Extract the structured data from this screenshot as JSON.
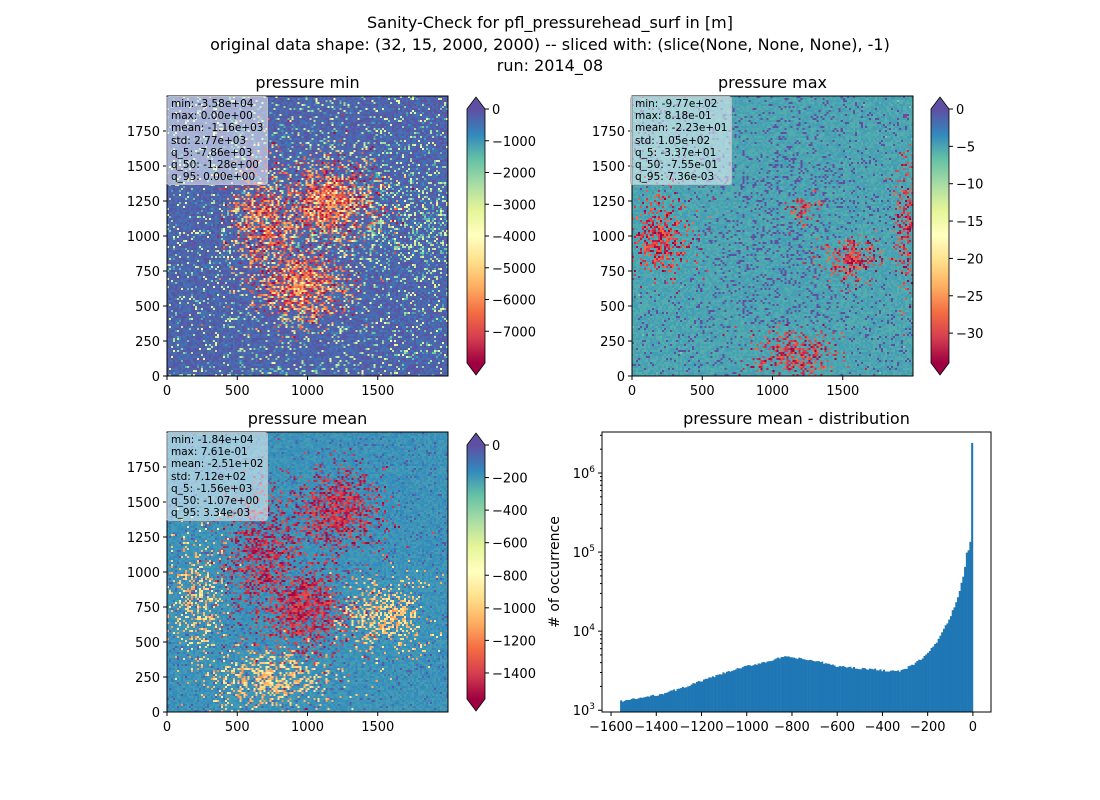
{
  "title_lines": [
    "Sanity-Check for pfl_pressurehead_surf in [m]",
    "original data shape: (32, 15, 2000, 2000) -- sliced with: (slice(None, None, None), -1)",
    "run: 2014_08"
  ],
  "chart_data": [
    {
      "type": "heatmap",
      "title": "pressure min",
      "xlabel": "",
      "ylabel": "",
      "xlim": [
        0,
        2000
      ],
      "ylim": [
        0,
        2000
      ],
      "xticks": [
        0,
        500,
        1000,
        1500
      ],
      "yticks": [
        0,
        250,
        500,
        750,
        1000,
        1250,
        1500,
        1750
      ],
      "colormap": "Spectral",
      "colorbar": {
        "vmin": -8000,
        "vmax": 0,
        "ticks": [
          0,
          -1000,
          -2000,
          -3000,
          -4000,
          -5000,
          -6000,
          -7000
        ],
        "extend": "both"
      },
      "stats": [
        "min: -3.58e+04",
        "max: 0.00e+00",
        "mean: -1.16e+03",
        "std: 2.77e+03",
        "q_5: -7.86e+03",
        "q_50: -1.28e+00",
        "q_95: 0.00e+00"
      ]
    },
    {
      "type": "heatmap",
      "title": "pressure max",
      "xlabel": "",
      "ylabel": "",
      "xlim": [
        0,
        2000
      ],
      "ylim": [
        0,
        2000
      ],
      "xticks": [
        0,
        500,
        1000,
        1500
      ],
      "yticks": [
        0,
        250,
        500,
        750,
        1000,
        1250,
        1500,
        1750
      ],
      "colormap": "Spectral",
      "colorbar": {
        "vmin": -34,
        "vmax": 0,
        "ticks": [
          0,
          -5,
          -10,
          -15,
          -20,
          -25,
          -30
        ],
        "extend": "both"
      },
      "stats": [
        "min: -9.77e+02",
        "max: 8.18e-01",
        "mean: -2.23e+01",
        "std: 1.05e+02",
        "q_5: -3.37e+01",
        "q_50: -7.55e-01",
        "q_95: 7.36e-03"
      ]
    },
    {
      "type": "heatmap",
      "title": "pressure mean",
      "xlabel": "",
      "ylabel": "",
      "xlim": [
        0,
        2000
      ],
      "ylim": [
        0,
        2000
      ],
      "xticks": [
        0,
        500,
        1000,
        1500
      ],
      "yticks": [
        0,
        250,
        500,
        750,
        1000,
        1250,
        1500,
        1750
      ],
      "colormap": "Spectral",
      "colorbar": {
        "vmin": -1560,
        "vmax": 0,
        "ticks": [
          0,
          -200,
          -400,
          -600,
          -800,
          -1000,
          -1200,
          -1400
        ],
        "extend": "both"
      },
      "stats": [
        "min: -1.84e+04",
        "max: 7.61e-01",
        "mean: -2.51e+02",
        "std: 7.12e+02",
        "q_5: -1.56e+03",
        "q_50: -1.07e+00",
        "q_95: 3.34e-03"
      ]
    },
    {
      "type": "bar",
      "title": "pressure mean - distribution",
      "xlabel": "",
      "ylabel": "# of occurrence",
      "yscale": "log",
      "xlim": [
        -1640,
        80
      ],
      "ylim": [
        950,
        3300000
      ],
      "xticks": [
        -1600,
        -1400,
        -1200,
        -1000,
        -800,
        -600,
        -400,
        -200,
        0
      ],
      "xtick_labels": [
        "−1600",
        "−1400",
        "−1200",
        "−1000",
        "−800",
        "−600",
        "−400",
        "−200",
        "0"
      ],
      "yticks": [
        1000,
        10000,
        100000,
        1000000
      ],
      "ytick_bases": [
        "10",
        "10",
        "10",
        "10"
      ],
      "ytick_exps": [
        "3",
        "4",
        "5",
        "6"
      ],
      "color": "#1f77b4",
      "bin_range": [
        -1560,
        0
      ],
      "bins": 200,
      "profile": [
        [
          -1560,
          1300
        ],
        [
          -1500,
          1380
        ],
        [
          -1400,
          1550
        ],
        [
          -1300,
          1850
        ],
        [
          -1200,
          2350
        ],
        [
          -1100,
          2950
        ],
        [
          -1000,
          3600
        ],
        [
          -900,
          4200
        ],
        [
          -840,
          4700
        ],
        [
          -800,
          4650
        ],
        [
          -700,
          4200
        ],
        [
          -650,
          3900
        ],
        [
          -600,
          3600
        ],
        [
          -500,
          3400
        ],
        [
          -400,
          3200
        ],
        [
          -330,
          3100
        ],
        [
          -300,
          3300
        ],
        [
          -250,
          4000
        ],
        [
          -200,
          5200
        ],
        [
          -150,
          8000
        ],
        [
          -100,
          15000
        ],
        [
          -60,
          30000
        ],
        [
          -40,
          55000
        ],
        [
          -30,
          80000
        ],
        [
          -25,
          120000
        ],
        [
          -20,
          105000
        ],
        [
          -15,
          110000
        ],
        [
          -10,
          150000
        ],
        [
          -6,
          300000
        ],
        [
          0,
          2400000
        ]
      ]
    }
  ]
}
